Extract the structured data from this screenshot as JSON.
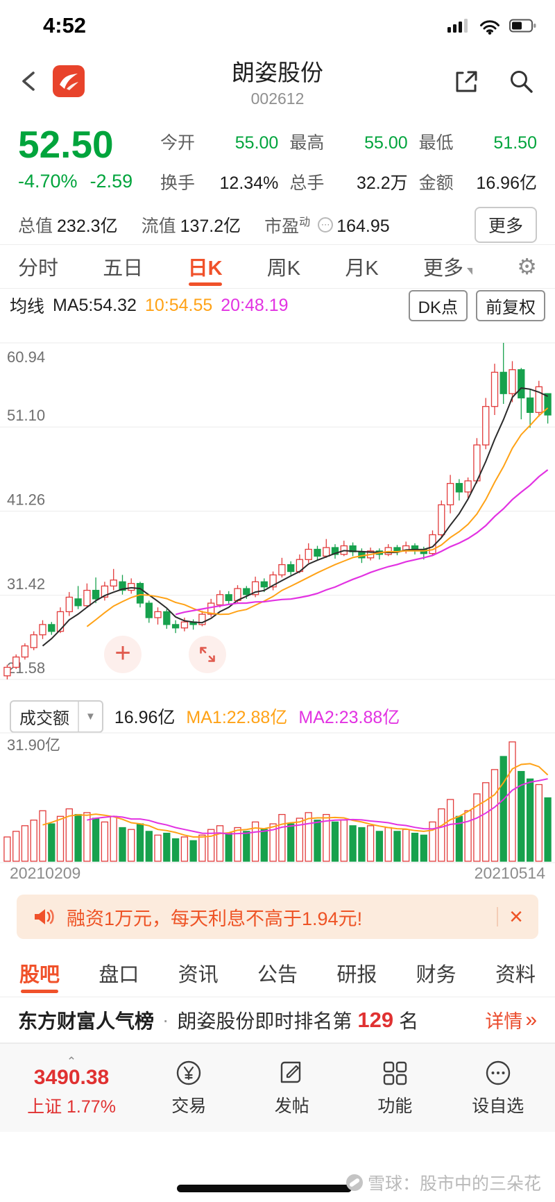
{
  "status_bar": {
    "time": "4:52"
  },
  "header": {
    "title": "朗姿股份",
    "code": "002612"
  },
  "quote": {
    "price": "52.50",
    "change_pct": "-4.70%",
    "change_abs": "-2.59",
    "fields": [
      {
        "label": "今开",
        "value": "55.00"
      },
      {
        "label": "最高",
        "value": "55.00"
      },
      {
        "label": "最低",
        "value": "51.50"
      },
      {
        "label": "换手",
        "value": "12.34%"
      },
      {
        "label": "总手",
        "value": "32.2万"
      },
      {
        "label": "金额",
        "value": "16.96亿"
      },
      {
        "label": "总值",
        "value": "232.3亿"
      },
      {
        "label": "流值",
        "value": "137.2亿"
      },
      {
        "label": "市盈",
        "sup": "动",
        "value": "164.95"
      }
    ],
    "more_label": "更多"
  },
  "period_tabs": {
    "items": [
      {
        "label": "分时"
      },
      {
        "label": "五日"
      },
      {
        "label": "日K",
        "active": true
      },
      {
        "label": "周K"
      },
      {
        "label": "月K"
      },
      {
        "label": "更多"
      }
    ]
  },
  "chart_header": {
    "ma_prefix": "均线",
    "ma5_label": "MA5:54.32",
    "ma10_label": "10:54.55",
    "ma20_label": "20:48.19",
    "dk_label": "DK点",
    "fq_label": "前复权"
  },
  "volume_header": {
    "selector_label": "成交额",
    "amount": "16.96亿",
    "ma1_label": "MA1:22.88亿",
    "ma2_label": "MA2:23.88亿"
  },
  "banner": {
    "text": "融资1万元，每天利息不高于1.94元!",
    "close": "×"
  },
  "info_tabs": {
    "items": [
      {
        "label": "股吧",
        "active": true
      },
      {
        "label": "盘口"
      },
      {
        "label": "资讯"
      },
      {
        "label": "公告"
      },
      {
        "label": "研报"
      },
      {
        "label": "财务"
      },
      {
        "label": "资料"
      }
    ]
  },
  "rank_bar": {
    "brand": "东方财富人气榜",
    "dot": "·",
    "text": "朗姿股份即时排名第",
    "rank": "129",
    "suffix": "名",
    "detail": "详情",
    "arrow": "»"
  },
  "bottom_bar": {
    "index_value": "3490.38",
    "index_name": "上证",
    "index_pct": "1.77%",
    "items": [
      {
        "label": "交易"
      },
      {
        "label": "发帖"
      },
      {
        "label": "功能"
      },
      {
        "label": "设自选"
      }
    ]
  },
  "watermark": {
    "text": "雪球：股市中的三朵花"
  },
  "colors": {
    "up": "#e23b3b",
    "down": "#17a14d",
    "price_green": "#00a43c",
    "accent_red": "#f0512a",
    "index_red": "#e03131",
    "ma_black": "#2b2b2b",
    "ma_orange": "#ffa216",
    "ma_magenta": "#e232e2"
  },
  "chart_data": {
    "type": "candlestick",
    "title": "朗姿股份 002612 日K",
    "y_axis": {
      "labels": [
        "60.94",
        "51.10",
        "41.26",
        "31.42",
        "21.58"
      ],
      "min": 21.58,
      "max": 60.94
    },
    "x_range": [
      "20210209",
      "20210514"
    ],
    "series": [
      {
        "name": "MA5",
        "color": "#2b2b2b",
        "current": 54.32
      },
      {
        "name": "MA10",
        "color": "#ffa216",
        "current": 54.55
      },
      {
        "name": "MA20",
        "color": "#e232e2",
        "current": 48.19
      }
    ],
    "candle_format": [
      "open",
      "close",
      "low",
      "high"
    ],
    "candles": [
      [
        22.0,
        23.0,
        21.58,
        23.3
      ],
      [
        23.0,
        24.2,
        22.8,
        24.5
      ],
      [
        24.2,
        25.5,
        23.9,
        25.8
      ],
      [
        25.3,
        26.8,
        25.0,
        27.2
      ],
      [
        26.8,
        28.0,
        26.3,
        28.5
      ],
      [
        28.0,
        27.2,
        26.8,
        28.3
      ],
      [
        27.2,
        29.5,
        27.0,
        30.0
      ],
      [
        29.5,
        31.2,
        29.0,
        31.8
      ],
      [
        31.0,
        30.2,
        29.8,
        32.5
      ],
      [
        30.2,
        32.0,
        30.0,
        32.8
      ],
      [
        32.0,
        31.0,
        30.5,
        33.5
      ],
      [
        31.2,
        32.5,
        30.8,
        33.0
      ],
      [
        32.5,
        33.2,
        32.0,
        34.5
      ],
      [
        33.0,
        32.0,
        31.5,
        33.8
      ],
      [
        32.0,
        32.8,
        31.6,
        33.4
      ],
      [
        32.8,
        30.5,
        30.0,
        33.0
      ],
      [
        30.5,
        28.8,
        28.2,
        30.8
      ],
      [
        28.8,
        29.5,
        28.0,
        30.0
      ],
      [
        29.5,
        28.0,
        27.5,
        29.8
      ],
      [
        28.0,
        27.6,
        27.0,
        28.5
      ],
      [
        27.6,
        28.3,
        27.2,
        28.8
      ],
      [
        28.3,
        28.0,
        27.4,
        28.6
      ],
      [
        28.0,
        29.2,
        27.8,
        29.6
      ],
      [
        29.2,
        30.5,
        28.9,
        31.0
      ],
      [
        30.3,
        31.5,
        30.0,
        32.0
      ],
      [
        31.5,
        30.8,
        30.3,
        31.9
      ],
      [
        30.8,
        32.2,
        30.5,
        32.6
      ],
      [
        32.2,
        31.5,
        31.0,
        32.5
      ],
      [
        31.5,
        33.0,
        31.2,
        33.6
      ],
      [
        33.0,
        32.4,
        31.8,
        33.4
      ],
      [
        32.4,
        33.8,
        32.0,
        34.2
      ],
      [
        33.8,
        35.0,
        33.5,
        35.8
      ],
      [
        35.0,
        34.2,
        33.8,
        35.4
      ],
      [
        34.2,
        35.6,
        34.0,
        36.2
      ],
      [
        35.6,
        36.8,
        35.2,
        37.5
      ],
      [
        36.8,
        36.0,
        35.5,
        37.2
      ],
      [
        36.0,
        37.0,
        35.8,
        38.0
      ],
      [
        37.0,
        36.2,
        35.7,
        37.4
      ],
      [
        36.2,
        37.2,
        36.0,
        37.8
      ],
      [
        37.2,
        36.5,
        36.0,
        37.6
      ],
      [
        36.5,
        35.8,
        35.2,
        36.9
      ],
      [
        35.8,
        36.6,
        35.5,
        37.0
      ],
      [
        36.6,
        36.2,
        35.6,
        36.9
      ],
      [
        36.2,
        37.0,
        36.0,
        37.4
      ],
      [
        37.0,
        36.6,
        36.1,
        37.3
      ],
      [
        36.6,
        37.2,
        36.3,
        37.7
      ],
      [
        37.2,
        36.8,
        36.2,
        37.5
      ],
      [
        36.8,
        36.3,
        35.6,
        37.1
      ],
      [
        36.3,
        38.5,
        36.0,
        39.0
      ],
      [
        38.5,
        42.0,
        38.2,
        42.5
      ],
      [
        42.0,
        44.5,
        41.0,
        45.5
      ],
      [
        44.5,
        43.5,
        42.5,
        45.0
      ],
      [
        43.5,
        44.8,
        42.8,
        45.2
      ],
      [
        44.8,
        49.0,
        44.5,
        49.8
      ],
      [
        49.0,
        53.5,
        48.5,
        54.5
      ],
      [
        53.5,
        57.5,
        52.5,
        58.5
      ],
      [
        57.5,
        55.0,
        53.8,
        60.94
      ],
      [
        55.0,
        57.8,
        54.0,
        58.8
      ],
      [
        57.8,
        54.5,
        52.0,
        58.0
      ],
      [
        54.5,
        52.8,
        51.0,
        55.5
      ],
      [
        52.8,
        55.8,
        52.3,
        56.5
      ],
      [
        55.0,
        52.5,
        51.5,
        55.0
      ]
    ],
    "volume": {
      "unit": "亿",
      "max": 31.9,
      "max_label": "31.90亿",
      "ma1": 22.88,
      "ma2": 23.88,
      "values": [
        6.5,
        8.0,
        9.5,
        11.0,
        13.5,
        10.0,
        12.0,
        14.0,
        12.5,
        13.0,
        11.5,
        10.5,
        12.0,
        9.0,
        8.5,
        10.0,
        8.0,
        7.0,
        7.5,
        6.0,
        6.5,
        5.5,
        7.0,
        8.5,
        9.5,
        7.5,
        9.0,
        8.0,
        10.5,
        8.5,
        10.0,
        12.5,
        10.0,
        11.5,
        13.0,
        11.0,
        12.5,
        10.5,
        11.0,
        9.5,
        9.0,
        9.5,
        8.0,
        9.0,
        8.0,
        8.5,
        7.5,
        7.0,
        10.5,
        14.0,
        16.5,
        12.0,
        13.5,
        18.0,
        21.0,
        24.5,
        28.0,
        31.9,
        24.0,
        22.0,
        20.5,
        16.96
      ]
    }
  }
}
